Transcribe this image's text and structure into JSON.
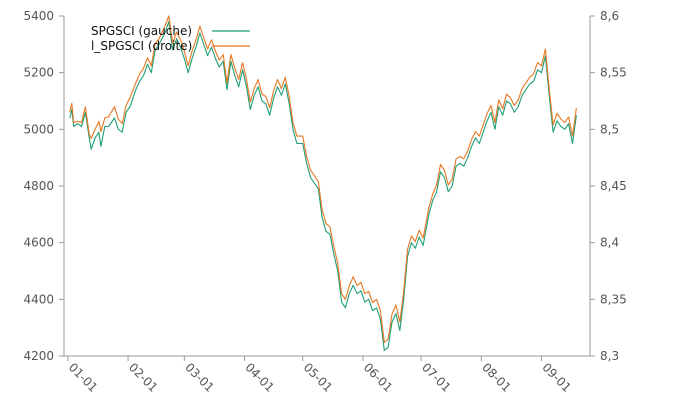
{
  "chart_data": {
    "type": "line",
    "title": "",
    "xlabel": "",
    "ylabel_left": "",
    "ylabel_right": "",
    "grid": false,
    "legend_placement": "top-left",
    "x_ticks": [
      "01-01",
      "02-01",
      "03-01",
      "04-01",
      "05-01",
      "06-01",
      "07-01",
      "08-01",
      "09-01"
    ],
    "x_tick_positions": [
      0,
      31,
      60,
      91,
      121,
      152,
      182,
      213,
      244
    ],
    "x_range": [
      -2,
      269
    ],
    "y_left": {
      "range": [
        4200,
        5400
      ],
      "ticks": [
        4200,
        4400,
        4600,
        4800,
        5000,
        5200,
        5400
      ],
      "tick_labels": [
        "4200",
        "4400",
        "4600",
        "4800",
        "5000",
        "5200",
        "5400"
      ]
    },
    "y_right": {
      "range": [
        8.3,
        8.6
      ],
      "ticks": [
        8.3,
        8.35,
        8.4,
        8.45,
        8.5,
        8.55,
        8.6
      ],
      "tick_labels": [
        "8,3",
        "8,35",
        "8,4",
        "8,45",
        "8,5",
        "8,55",
        "8,6"
      ]
    },
    "series": [
      {
        "name": "SPGSCI (gauche)",
        "axis": "left",
        "color": "#1f9e75",
        "points": [
          [
            1,
            5040
          ],
          [
            2,
            5070
          ],
          [
            3,
            5010
          ],
          [
            5,
            5020
          ],
          [
            7,
            5010
          ],
          [
            9,
            5060
          ],
          [
            11,
            4970
          ],
          [
            12,
            4930
          ],
          [
            14,
            4970
          ],
          [
            16,
            4990
          ],
          [
            17,
            4940
          ],
          [
            19,
            5010
          ],
          [
            21,
            5010
          ],
          [
            24,
            5040
          ],
          [
            26,
            5000
          ],
          [
            28,
            4990
          ],
          [
            30,
            5060
          ],
          [
            32,
            5080
          ],
          [
            35,
            5140
          ],
          [
            37,
            5170
          ],
          [
            39,
            5190
          ],
          [
            41,
            5230
          ],
          [
            43,
            5200
          ],
          [
            45,
            5280
          ],
          [
            47,
            5300
          ],
          [
            50,
            5340
          ],
          [
            52,
            5380
          ],
          [
            54,
            5280
          ],
          [
            56,
            5320
          ],
          [
            58,
            5290
          ],
          [
            60,
            5250
          ],
          [
            62,
            5200
          ],
          [
            64,
            5250
          ],
          [
            66,
            5290
          ],
          [
            68,
            5340
          ],
          [
            70,
            5300
          ],
          [
            72,
            5260
          ],
          [
            74,
            5290
          ],
          [
            76,
            5250
          ],
          [
            78,
            5220
          ],
          [
            80,
            5240
          ],
          [
            82,
            5140
          ],
          [
            84,
            5240
          ],
          [
            86,
            5190
          ],
          [
            88,
            5150
          ],
          [
            90,
            5210
          ],
          [
            92,
            5150
          ],
          [
            94,
            5070
          ],
          [
            96,
            5120
          ],
          [
            98,
            5150
          ],
          [
            100,
            5100
          ],
          [
            102,
            5090
          ],
          [
            104,
            5050
          ],
          [
            106,
            5110
          ],
          [
            108,
            5150
          ],
          [
            110,
            5120
          ],
          [
            112,
            5160
          ],
          [
            114,
            5090
          ],
          [
            116,
            5000
          ],
          [
            118,
            4950
          ],
          [
            121,
            4950
          ],
          [
            123,
            4880
          ],
          [
            125,
            4830
          ],
          [
            127,
            4810
          ],
          [
            129,
            4790
          ],
          [
            131,
            4690
          ],
          [
            133,
            4640
          ],
          [
            135,
            4630
          ],
          [
            137,
            4560
          ],
          [
            139,
            4500
          ],
          [
            141,
            4390
          ],
          [
            143,
            4370
          ],
          [
            145,
            4420
          ],
          [
            147,
            4450
          ],
          [
            149,
            4420
          ],
          [
            151,
            4430
          ],
          [
            153,
            4390
          ],
          [
            155,
            4400
          ],
          [
            157,
            4360
          ],
          [
            159,
            4370
          ],
          [
            161,
            4330
          ],
          [
            163,
            4220
          ],
          [
            165,
            4230
          ],
          [
            167,
            4320
          ],
          [
            169,
            4350
          ],
          [
            171,
            4290
          ],
          [
            173,
            4400
          ],
          [
            175,
            4550
          ],
          [
            177,
            4600
          ],
          [
            179,
            4580
          ],
          [
            181,
            4620
          ],
          [
            183,
            4590
          ],
          [
            186,
            4700
          ],
          [
            188,
            4750
          ],
          [
            190,
            4780
          ],
          [
            192,
            4850
          ],
          [
            194,
            4830
          ],
          [
            196,
            4780
          ],
          [
            198,
            4800
          ],
          [
            200,
            4870
          ],
          [
            202,
            4880
          ],
          [
            204,
            4870
          ],
          [
            206,
            4900
          ],
          [
            208,
            4940
          ],
          [
            210,
            4970
          ],
          [
            212,
            4950
          ],
          [
            214,
            4990
          ],
          [
            216,
            5030
          ],
          [
            218,
            5060
          ],
          [
            220,
            5000
          ],
          [
            222,
            5080
          ],
          [
            224,
            5050
          ],
          [
            226,
            5100
          ],
          [
            228,
            5090
          ],
          [
            230,
            5060
          ],
          [
            232,
            5080
          ],
          [
            234,
            5120
          ],
          [
            236,
            5140
          ],
          [
            238,
            5160
          ],
          [
            240,
            5170
          ],
          [
            242,
            5210
          ],
          [
            244,
            5200
          ],
          [
            246,
            5260
          ],
          [
            248,
            5120
          ],
          [
            250,
            4990
          ],
          [
            252,
            5030
          ],
          [
            254,
            5010
          ],
          [
            256,
            5000
          ],
          [
            258,
            5020
          ],
          [
            260,
            4950
          ],
          [
            262,
            5050
          ]
        ]
      },
      {
        "name": "l_SPGSCI (droite)",
        "axis": "right",
        "color": "#e87722",
        "points": [
          [
            1,
            8.515
          ],
          [
            2,
            8.523
          ],
          [
            3,
            8.506
          ],
          [
            5,
            8.507
          ],
          [
            7,
            8.506
          ],
          [
            9,
            8.52
          ],
          [
            11,
            8.496
          ],
          [
            12,
            8.492
          ],
          [
            14,
            8.5
          ],
          [
            16,
            8.507
          ],
          [
            17,
            8.498
          ],
          [
            19,
            8.51
          ],
          [
            21,
            8.511
          ],
          [
            24,
            8.52
          ],
          [
            26,
            8.509
          ],
          [
            28,
            8.505
          ],
          [
            30,
            8.521
          ],
          [
            32,
            8.528
          ],
          [
            35,
            8.541
          ],
          [
            37,
            8.549
          ],
          [
            39,
            8.554
          ],
          [
            41,
            8.563
          ],
          [
            43,
            8.556
          ],
          [
            45,
            8.576
          ],
          [
            47,
            8.58
          ],
          [
            50,
            8.591
          ],
          [
            52,
            8.6
          ],
          [
            54,
            8.576
          ],
          [
            56,
            8.586
          ],
          [
            58,
            8.579
          ],
          [
            60,
            8.569
          ],
          [
            62,
            8.556
          ],
          [
            64,
            8.569
          ],
          [
            66,
            8.579
          ],
          [
            68,
            8.591
          ],
          [
            70,
            8.581
          ],
          [
            72,
            8.571
          ],
          [
            74,
            8.579
          ],
          [
            76,
            8.569
          ],
          [
            78,
            8.561
          ],
          [
            80,
            8.566
          ],
          [
            82,
            8.541
          ],
          [
            84,
            8.566
          ],
          [
            86,
            8.554
          ],
          [
            88,
            8.544
          ],
          [
            90,
            8.559
          ],
          [
            92,
            8.544
          ],
          [
            94,
            8.524
          ],
          [
            96,
            8.536
          ],
          [
            98,
            8.544
          ],
          [
            100,
            8.531
          ],
          [
            102,
            8.529
          ],
          [
            104,
            8.519
          ],
          [
            106,
            8.534
          ],
          [
            108,
            8.544
          ],
          [
            110,
            8.536
          ],
          [
            112,
            8.546
          ],
          [
            114,
            8.529
          ],
          [
            116,
            8.506
          ],
          [
            118,
            8.494
          ],
          [
            121,
            8.494
          ],
          [
            123,
            8.476
          ],
          [
            125,
            8.464
          ],
          [
            127,
            8.459
          ],
          [
            129,
            8.454
          ],
          [
            131,
            8.429
          ],
          [
            133,
            8.417
          ],
          [
            135,
            8.414
          ],
          [
            137,
            8.397
          ],
          [
            139,
            8.382
          ],
          [
            141,
            8.355
          ],
          [
            143,
            8.35
          ],
          [
            145,
            8.362
          ],
          [
            147,
            8.37
          ],
          [
            149,
            8.362
          ],
          [
            151,
            8.365
          ],
          [
            153,
            8.355
          ],
          [
            155,
            8.357
          ],
          [
            157,
            8.347
          ],
          [
            159,
            8.35
          ],
          [
            161,
            8.34
          ],
          [
            163,
            8.312
          ],
          [
            165,
            8.315
          ],
          [
            167,
            8.337
          ],
          [
            169,
            8.345
          ],
          [
            171,
            8.33
          ],
          [
            173,
            8.357
          ],
          [
            175,
            8.394
          ],
          [
            177,
            8.406
          ],
          [
            179,
            8.401
          ],
          [
            181,
            8.411
          ],
          [
            183,
            8.404
          ],
          [
            186,
            8.431
          ],
          [
            188,
            8.443
          ],
          [
            190,
            8.451
          ],
          [
            192,
            8.469
          ],
          [
            194,
            8.464
          ],
          [
            196,
            8.451
          ],
          [
            198,
            8.456
          ],
          [
            200,
            8.474
          ],
          [
            202,
            8.476
          ],
          [
            204,
            8.474
          ],
          [
            206,
            8.481
          ],
          [
            208,
            8.491
          ],
          [
            210,
            8.498
          ],
          [
            212,
            8.494
          ],
          [
            214,
            8.504
          ],
          [
            216,
            8.514
          ],
          [
            218,
            8.521
          ],
          [
            220,
            8.506
          ],
          [
            222,
            8.526
          ],
          [
            224,
            8.518
          ],
          [
            226,
            8.531
          ],
          [
            228,
            8.528
          ],
          [
            230,
            8.521
          ],
          [
            232,
            8.526
          ],
          [
            234,
            8.536
          ],
          [
            236,
            8.541
          ],
          [
            238,
            8.546
          ],
          [
            240,
            8.549
          ],
          [
            242,
            8.559
          ],
          [
            244,
            8.556
          ],
          [
            246,
            8.571
          ],
          [
            248,
            8.536
          ],
          [
            250,
            8.504
          ],
          [
            252,
            8.514
          ],
          [
            254,
            8.509
          ],
          [
            256,
            8.506
          ],
          [
            258,
            8.511
          ],
          [
            260,
            8.494
          ],
          [
            262,
            8.519
          ]
        ]
      }
    ]
  }
}
